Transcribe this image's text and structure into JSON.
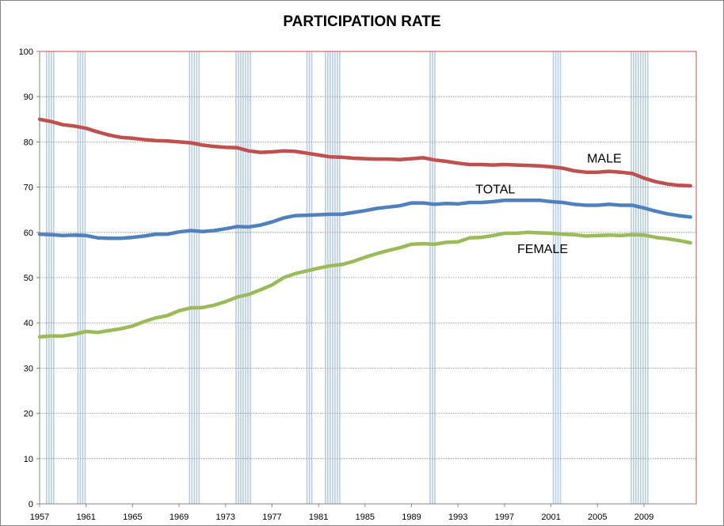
{
  "chart_data": {
    "type": "line",
    "title": "PARTICIPATION RATE",
    "xlabel": "",
    "ylabel": "",
    "xlim": [
      1957,
      2013.5
    ],
    "ylim": [
      0,
      100
    ],
    "grid": true,
    "legend": "none",
    "x_ticks": [
      "1957",
      "1961",
      "1965",
      "1969",
      "1973",
      "1977",
      "1981",
      "1985",
      "1989",
      "1993",
      "1997",
      "2001",
      "2005",
      "2009"
    ],
    "y_ticks": [
      "0",
      "10",
      "20",
      "30",
      "40",
      "50",
      "60",
      "70",
      "80",
      "90",
      "100"
    ],
    "recession_periods": [
      [
        1957.6,
        1958.3
      ],
      [
        1960.3,
        1961.1
      ],
      [
        1969.9,
        1970.9
      ],
      [
        1973.9,
        1975.2
      ],
      [
        1980.0,
        1980.5
      ],
      [
        1981.6,
        1982.9
      ],
      [
        1990.6,
        1991.2
      ],
      [
        2001.2,
        2001.9
      ],
      [
        2007.9,
        2009.5
      ]
    ],
    "colors": {
      "male": "#c0504d",
      "total": "#4f81bd",
      "female": "#9bbb59",
      "recession": "#b8cce4",
      "border": "#c0504d"
    },
    "series": [
      {
        "name": "MALE",
        "color": "#c0504d",
        "x": [
          1957,
          1958,
          1959,
          1960,
          1961,
          1962,
          1963,
          1964,
          1965,
          1966,
          1967,
          1968,
          1969,
          1970,
          1971,
          1972,
          1973,
          1974,
          1975,
          1976,
          1977,
          1978,
          1979,
          1980,
          1981,
          1982,
          1983,
          1984,
          1985,
          1986,
          1987,
          1988,
          1989,
          1990,
          1991,
          1992,
          1993,
          1994,
          1995,
          1996,
          1997,
          1998,
          1999,
          2000,
          2001,
          2002,
          2003,
          2004,
          2005,
          2006,
          2007,
          2008,
          2009,
          2010,
          2011,
          2012,
          2013
        ],
        "values": [
          85.0,
          84.5,
          83.8,
          83.5,
          83.0,
          82.2,
          81.5,
          81.0,
          80.8,
          80.5,
          80.3,
          80.2,
          80.0,
          79.8,
          79.3,
          79.0,
          78.8,
          78.7,
          78.0,
          77.7,
          77.8,
          78.0,
          77.9,
          77.5,
          77.1,
          76.7,
          76.6,
          76.4,
          76.3,
          76.2,
          76.2,
          76.1,
          76.3,
          76.5,
          76.0,
          75.7,
          75.3,
          75.0,
          75.0,
          74.9,
          75.0,
          74.9,
          74.8,
          74.7,
          74.5,
          74.2,
          73.6,
          73.3,
          73.3,
          73.5,
          73.3,
          73.0,
          72.0,
          71.2,
          70.7,
          70.4,
          70.3
        ]
      },
      {
        "name": "TOTAL",
        "color": "#4f81bd",
        "x": [
          1957,
          1958,
          1959,
          1960,
          1961,
          1962,
          1963,
          1964,
          1965,
          1966,
          1967,
          1968,
          1969,
          1970,
          1971,
          1972,
          1973,
          1974,
          1975,
          1976,
          1977,
          1978,
          1979,
          1980,
          1981,
          1982,
          1983,
          1984,
          1985,
          1986,
          1987,
          1988,
          1989,
          1990,
          1991,
          1992,
          1993,
          1994,
          1995,
          1996,
          1997,
          1998,
          1999,
          2000,
          2001,
          2002,
          2003,
          2004,
          2005,
          2006,
          2007,
          2008,
          2009,
          2010,
          2011,
          2012,
          2013
        ],
        "values": [
          59.6,
          59.5,
          59.3,
          59.4,
          59.3,
          58.8,
          58.7,
          58.7,
          58.9,
          59.2,
          59.6,
          59.6,
          60.1,
          60.4,
          60.2,
          60.4,
          60.8,
          61.3,
          61.2,
          61.6,
          62.3,
          63.2,
          63.7,
          63.8,
          63.9,
          64.0,
          64.0,
          64.4,
          64.8,
          65.3,
          65.6,
          65.9,
          66.5,
          66.5,
          66.2,
          66.4,
          66.3,
          66.6,
          66.6,
          66.8,
          67.1,
          67.1,
          67.1,
          67.1,
          66.8,
          66.6,
          66.2,
          66.0,
          66.0,
          66.2,
          66.0,
          66.0,
          65.4,
          64.7,
          64.1,
          63.7,
          63.4
        ]
      },
      {
        "name": "FEMALE",
        "color": "#9bbb59",
        "x": [
          1957,
          1958,
          1959,
          1960,
          1961,
          1962,
          1963,
          1964,
          1965,
          1966,
          1967,
          1968,
          1969,
          1970,
          1971,
          1972,
          1973,
          1974,
          1975,
          1976,
          1977,
          1978,
          1979,
          1980,
          1981,
          1982,
          1983,
          1984,
          1985,
          1986,
          1987,
          1988,
          1989,
          1990,
          1991,
          1992,
          1993,
          1994,
          1995,
          1996,
          1997,
          1998,
          1999,
          2000,
          2001,
          2002,
          2003,
          2004,
          2005,
          2006,
          2007,
          2008,
          2009,
          2010,
          2011,
          2012,
          2013
        ],
        "values": [
          36.9,
          37.1,
          37.1,
          37.5,
          38.1,
          37.9,
          38.3,
          38.7,
          39.3,
          40.3,
          41.1,
          41.6,
          42.7,
          43.3,
          43.4,
          43.9,
          44.7,
          45.7,
          46.3,
          47.3,
          48.4,
          50.0,
          50.9,
          51.5,
          52.1,
          52.6,
          52.9,
          53.6,
          54.5,
          55.3,
          56.0,
          56.6,
          57.4,
          57.5,
          57.4,
          57.8,
          57.9,
          58.8,
          58.9,
          59.3,
          59.8,
          59.8,
          60.0,
          59.9,
          59.8,
          59.6,
          59.5,
          59.2,
          59.3,
          59.4,
          59.3,
          59.5,
          59.4,
          58.9,
          58.6,
          58.2,
          57.7
        ]
      }
    ],
    "annotations": [
      {
        "text": "MALE",
        "x": 2004.1,
        "y": 75.4
      },
      {
        "text": "TOTAL",
        "x": 1994.5,
        "y": 68.6
      },
      {
        "text": "FEMALE",
        "x": 1998.1,
        "y": 55.4
      }
    ]
  }
}
